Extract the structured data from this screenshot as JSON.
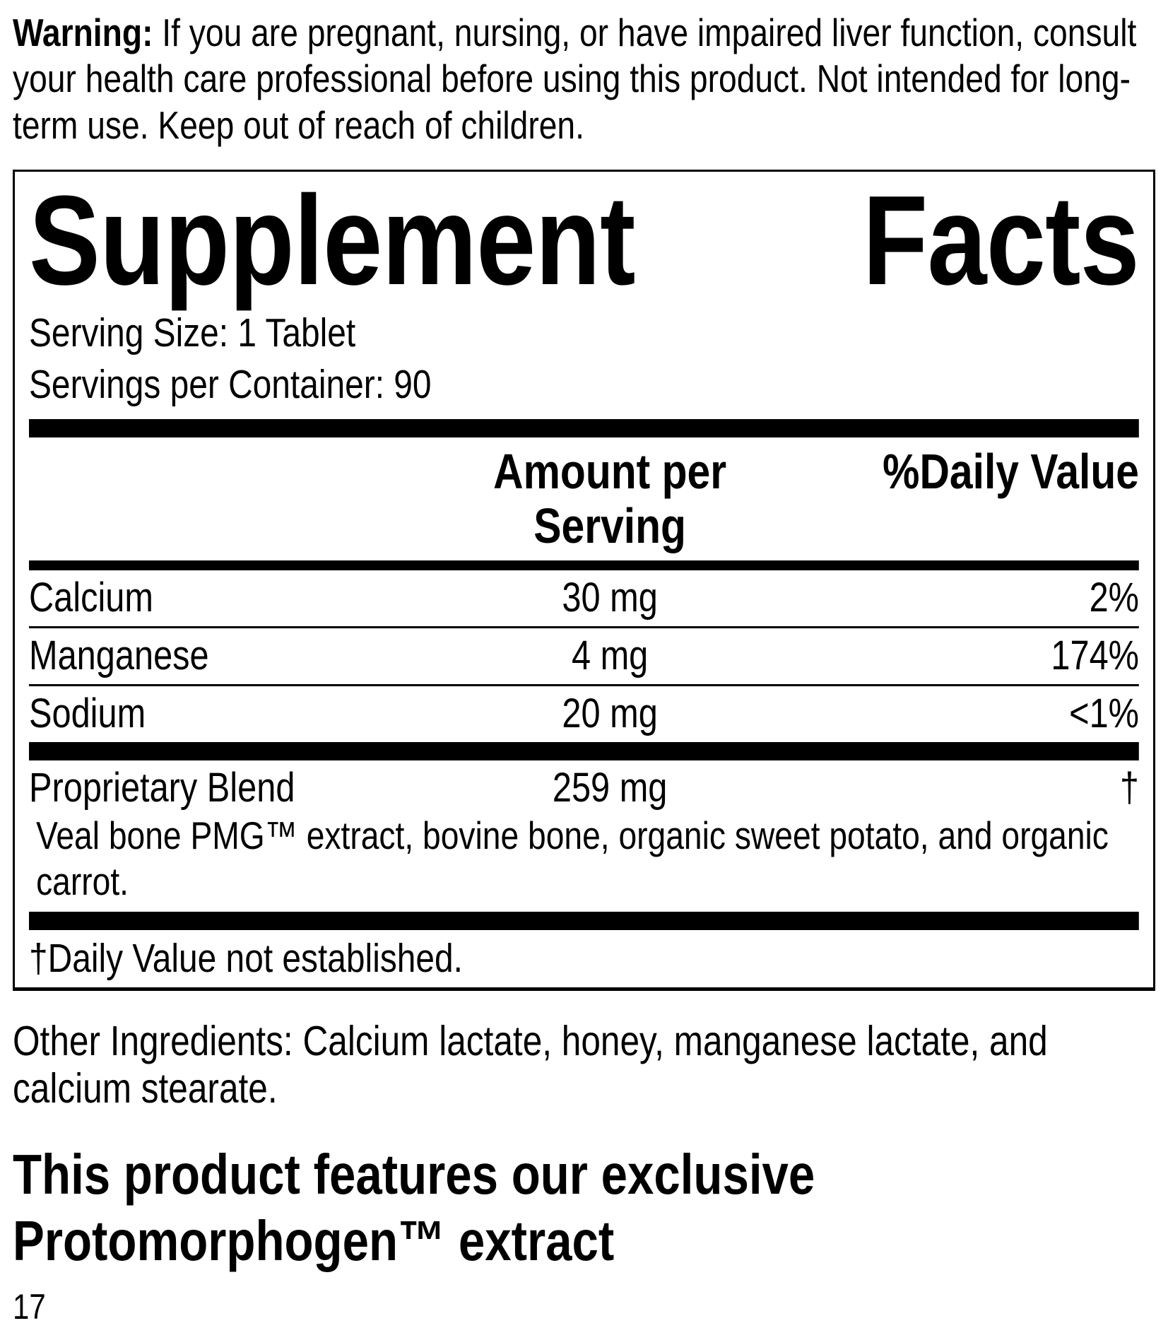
{
  "colors": {
    "ink": "#000000",
    "paper": "#ffffff"
  },
  "warning": {
    "label": "Warning:",
    "text": " If you are pregnant, nursing, or have impaired liver function, consult your health care professional before using this product. Not intended for long-term use. Keep out of reach of children."
  },
  "panel": {
    "title": "Supplement Facts",
    "serving_size": "Serving Size: 1 Tablet",
    "servings_per_container": "Servings per Container: 90",
    "header": {
      "amount": "Amount per Serving",
      "daily_value": "%Daily Value"
    },
    "rows": [
      {
        "name": "Calcium",
        "amount": "30 mg",
        "dv": "2%"
      },
      {
        "name": "Manganese",
        "amount": "4 mg",
        "dv": "174%"
      },
      {
        "name": "Sodium",
        "amount": "20 mg",
        "dv": "<1%"
      }
    ],
    "blend": {
      "name": "Proprietary Blend",
      "amount": "259 mg",
      "dv": "†",
      "description": "Veal bone PMG™ extract, bovine bone, organic sweet potato, and organic carrot."
    },
    "footnote": "†Daily Value not established."
  },
  "other_ingredients": "Other Ingredients: Calcium lactate, honey, manganese lactate, and calcium stearate.",
  "feature_heading": "This product features our exclusive Protomorphogen™ extract",
  "page_number": "17"
}
